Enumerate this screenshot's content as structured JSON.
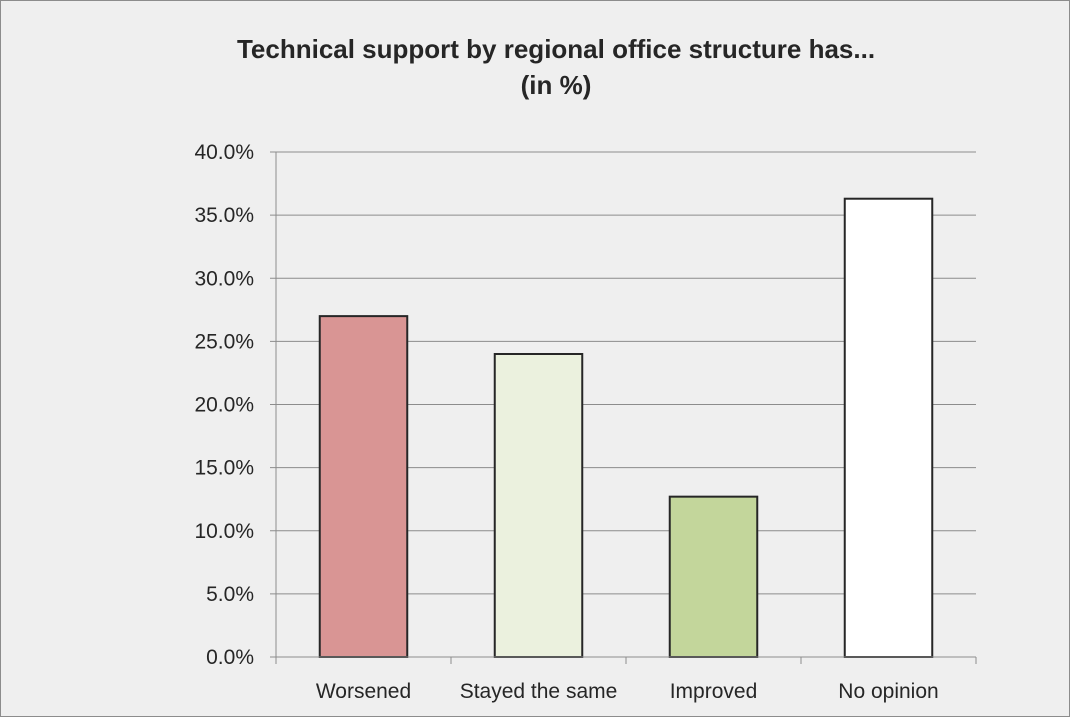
{
  "chart_data": {
    "type": "bar",
    "title_lines": [
      "Technical support by regional office structure has...",
      "(in %)"
    ],
    "xlabel": "",
    "ylabel": "",
    "categories": [
      "Worsened",
      "Stayed the same",
      "Improved",
      "No opinion"
    ],
    "values": [
      27.0,
      24.0,
      12.7,
      36.3
    ],
    "bar_colors": [
      "#d99594",
      "#ebf1de",
      "#c3d69b",
      "#ffffff"
    ],
    "bar_outline_color": "#262626",
    "ylim": [
      0,
      40
    ],
    "y_ticks": [
      "0.0%",
      "5.0%",
      "10.0%",
      "15.0%",
      "20.0%",
      "25.0%",
      "30.0%",
      "35.0%",
      "40.0%"
    ],
    "grid": true,
    "legend": "none"
  }
}
